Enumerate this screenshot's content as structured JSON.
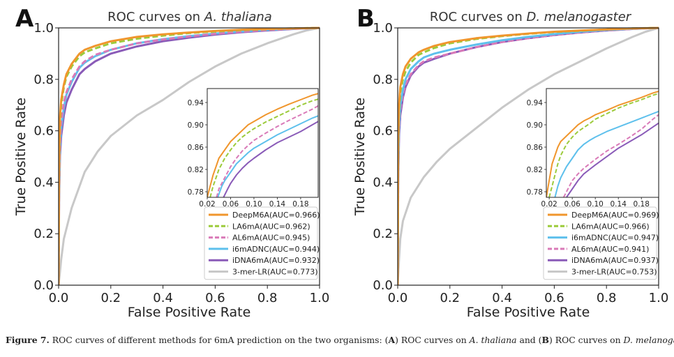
{
  "caption": {
    "figure_label": "Figure 7.",
    "text_1": " ROC curves of different methods for 6mA prediction on the two organisms: (",
    "label_a": "A",
    "text_2": ") ROC curves on ",
    "species_a": "A. thaliana",
    "text_3": " and (",
    "label_b": "B",
    "text_4": ") ROC curves on ",
    "species_b": "D. melanogaster",
    "text_5": "."
  },
  "chart_data": [
    {
      "type": "line",
      "panel_label": "A",
      "title_prefix": "ROC curves on ",
      "title_species": "A. thaliana",
      "xlabel": "False Positive Rate",
      "ylabel": "True Positive Rate",
      "xlim": [
        0,
        1
      ],
      "ylim": [
        0,
        1
      ],
      "xticks": [
        "0.0",
        "0.2",
        "0.4",
        "0.6",
        "0.8",
        "1.0"
      ],
      "yticks": [
        "0.0",
        "0.2",
        "0.4",
        "0.6",
        "0.8",
        "1.0"
      ],
      "legend_position": "bottom-right",
      "series": [
        {
          "name": "DeepM6A(AUC=0.966)",
          "color": "#f0962d",
          "dash": "solid",
          "x": [
            0,
            0.002,
            0.005,
            0.01,
            0.02,
            0.03,
            0.05,
            0.08,
            0.1,
            0.14,
            0.2,
            0.3,
            0.4,
            0.5,
            0.6,
            0.7,
            0.8,
            0.9,
            1.0
          ],
          "y": [
            0,
            0.45,
            0.65,
            0.72,
            0.78,
            0.82,
            0.86,
            0.9,
            0.915,
            0.93,
            0.948,
            0.965,
            0.975,
            0.982,
            0.988,
            0.993,
            0.996,
            0.998,
            1.0
          ]
        },
        {
          "name": "LA6mA(AUC=0.962)",
          "color": "#9ccb3b",
          "dash": "dashed",
          "x": [
            0,
            0.002,
            0.005,
            0.01,
            0.02,
            0.03,
            0.05,
            0.08,
            0.1,
            0.14,
            0.2,
            0.3,
            0.4,
            0.5,
            0.6,
            0.7,
            0.8,
            0.9,
            1.0
          ],
          "y": [
            0,
            0.43,
            0.63,
            0.7,
            0.77,
            0.81,
            0.85,
            0.89,
            0.905,
            0.92,
            0.94,
            0.958,
            0.97,
            0.98,
            0.986,
            0.991,
            0.995,
            0.998,
            1.0
          ]
        },
        {
          "name": "AL6mA(AUC=0.945)",
          "color": "#d97ab8",
          "dash": "dashed",
          "x": [
            0,
            0.002,
            0.005,
            0.01,
            0.02,
            0.03,
            0.05,
            0.08,
            0.1,
            0.14,
            0.2,
            0.3,
            0.4,
            0.5,
            0.6,
            0.7,
            0.8,
            0.9,
            1.0
          ],
          "y": [
            0,
            0.38,
            0.55,
            0.63,
            0.71,
            0.75,
            0.8,
            0.85,
            0.87,
            0.895,
            0.915,
            0.94,
            0.955,
            0.967,
            0.977,
            0.985,
            0.992,
            0.997,
            1.0
          ]
        },
        {
          "name": "i6mADNC(AUC=0.944)",
          "color": "#5ec0ec",
          "dash": "solid",
          "x": [
            0,
            0.002,
            0.005,
            0.01,
            0.02,
            0.03,
            0.05,
            0.08,
            0.1,
            0.14,
            0.2,
            0.3,
            0.4,
            0.5,
            0.6,
            0.7,
            0.8,
            0.9,
            1.0
          ],
          "y": [
            0,
            0.36,
            0.53,
            0.61,
            0.69,
            0.74,
            0.79,
            0.845,
            0.865,
            0.89,
            0.915,
            0.94,
            0.956,
            0.968,
            0.978,
            0.986,
            0.992,
            0.997,
            1.0
          ]
        },
        {
          "name": "iDNA6mA(AUC=0.932)",
          "color": "#8a5bb8",
          "dash": "solid",
          "x": [
            0,
            0.002,
            0.005,
            0.01,
            0.02,
            0.03,
            0.05,
            0.08,
            0.1,
            0.14,
            0.2,
            0.3,
            0.4,
            0.5,
            0.6,
            0.7,
            0.8,
            0.9,
            1.0
          ],
          "y": [
            0,
            0.33,
            0.5,
            0.58,
            0.66,
            0.71,
            0.76,
            0.82,
            0.84,
            0.87,
            0.9,
            0.928,
            0.948,
            0.962,
            0.974,
            0.983,
            0.99,
            0.996,
            1.0
          ]
        },
        {
          "name": "3-mer-LR(AUC=0.773)",
          "color": "#c8c8c8",
          "dash": "solid",
          "x": [
            0,
            0.005,
            0.01,
            0.02,
            0.05,
            0.1,
            0.15,
            0.2,
            0.3,
            0.4,
            0.5,
            0.6,
            0.7,
            0.8,
            0.9,
            0.95,
            1.0
          ],
          "y": [
            0,
            0.05,
            0.1,
            0.18,
            0.3,
            0.44,
            0.52,
            0.58,
            0.66,
            0.72,
            0.79,
            0.85,
            0.9,
            0.94,
            0.975,
            0.99,
            1.0
          ]
        }
      ],
      "inset": {
        "xlim": [
          0.02,
          0.21
        ],
        "ylim": [
          0.77,
          0.965
        ],
        "xticks": [
          "0.02",
          "0.06",
          "0.10",
          "0.14",
          "0.18"
        ],
        "yticks": [
          "0.78",
          "0.82",
          "0.86",
          "0.90",
          "0.94"
        ],
        "series": [
          {
            "name": "DeepM6A(AUC=0.966)",
            "x": [
              0.02,
              0.025,
              0.03,
              0.035,
              0.04,
              0.05,
              0.06,
              0.07,
              0.08,
              0.09,
              0.1,
              0.12,
              0.14,
              0.16,
              0.18,
              0.2,
              0.21
            ],
            "y": [
              0.77,
              0.79,
              0.81,
              0.825,
              0.84,
              0.855,
              0.87,
              0.88,
              0.89,
              0.9,
              0.906,
              0.918,
              0.928,
              0.937,
              0.945,
              0.953,
              0.956
            ]
          },
          {
            "name": "LA6mA(AUC=0.962)",
            "x": [
              0.025,
              0.03,
              0.035,
              0.04,
              0.05,
              0.06,
              0.07,
              0.08,
              0.09,
              0.1,
              0.12,
              0.14,
              0.16,
              0.18,
              0.2,
              0.21
            ],
            "y": [
              0.77,
              0.79,
              0.805,
              0.82,
              0.84,
              0.855,
              0.868,
              0.878,
              0.886,
              0.893,
              0.905,
              0.915,
              0.925,
              0.935,
              0.943,
              0.946
            ]
          },
          {
            "name": "AL6mA(AUC=0.945)",
            "x": [
              0.036,
              0.04,
              0.05,
              0.06,
              0.07,
              0.08,
              0.09,
              0.1,
              0.12,
              0.14,
              0.16,
              0.18,
              0.2,
              0.21
            ],
            "y": [
              0.77,
              0.785,
              0.805,
              0.825,
              0.84,
              0.853,
              0.863,
              0.872,
              0.885,
              0.897,
              0.908,
              0.918,
              0.928,
              0.934
            ]
          },
          {
            "name": "i6mADNC(AUC=0.944)",
            "x": [
              0.038,
              0.045,
              0.05,
              0.06,
              0.07,
              0.08,
              0.09,
              0.1,
              0.12,
              0.14,
              0.16,
              0.18,
              0.2,
              0.21
            ],
            "y": [
              0.77,
              0.79,
              0.8,
              0.815,
              0.83,
              0.84,
              0.85,
              0.858,
              0.87,
              0.882,
              0.892,
              0.902,
              0.912,
              0.916
            ]
          },
          {
            "name": "iDNA6mA(AUC=0.932)",
            "x": [
              0.048,
              0.055,
              0.06,
              0.07,
              0.08,
              0.09,
              0.1,
              0.12,
              0.14,
              0.16,
              0.18,
              0.2,
              0.21
            ],
            "y": [
              0.77,
              0.785,
              0.795,
              0.81,
              0.822,
              0.832,
              0.84,
              0.855,
              0.868,
              0.878,
              0.888,
              0.9,
              0.906
            ]
          }
        ]
      }
    },
    {
      "type": "line",
      "panel_label": "B",
      "title_prefix": "ROC curves on ",
      "title_species": "D. melanogaster",
      "xlabel": "False Positive Rate",
      "ylabel": "True Positive Rate",
      "xlim": [
        0,
        1
      ],
      "ylim": [
        0,
        1
      ],
      "xticks": [
        "0.0",
        "0.2",
        "0.4",
        "0.6",
        "0.8",
        "1.0"
      ],
      "yticks": [
        "0.0",
        "0.2",
        "0.4",
        "0.6",
        "0.8",
        "1.0"
      ],
      "legend_position": "bottom-right",
      "series": [
        {
          "name": "DeepM6A(AUC=0.969)",
          "color": "#f0962d",
          "dash": "solid",
          "x": [
            0,
            0.002,
            0.005,
            0.01,
            0.02,
            0.03,
            0.05,
            0.08,
            0.1,
            0.14,
            0.2,
            0.3,
            0.4,
            0.5,
            0.6,
            0.7,
            0.8,
            0.9,
            1.0
          ],
          "y": [
            0,
            0.55,
            0.7,
            0.77,
            0.82,
            0.85,
            0.88,
            0.905,
            0.915,
            0.93,
            0.945,
            0.96,
            0.97,
            0.978,
            0.985,
            0.99,
            0.994,
            0.998,
            1.0
          ]
        },
        {
          "name": "LA6mA(AUC=0.966)",
          "color": "#9ccb3b",
          "dash": "dashed",
          "x": [
            0,
            0.002,
            0.005,
            0.01,
            0.02,
            0.03,
            0.05,
            0.08,
            0.1,
            0.14,
            0.2,
            0.3,
            0.4,
            0.5,
            0.6,
            0.7,
            0.8,
            0.9,
            1.0
          ],
          "y": [
            0,
            0.52,
            0.68,
            0.75,
            0.8,
            0.83,
            0.865,
            0.895,
            0.905,
            0.922,
            0.94,
            0.957,
            0.968,
            0.977,
            0.984,
            0.989,
            0.994,
            0.998,
            1.0
          ]
        },
        {
          "name": "i6mADNC(AUC=0.947)",
          "color": "#5ec0ec",
          "dash": "solid",
          "x": [
            0,
            0.002,
            0.005,
            0.01,
            0.02,
            0.03,
            0.05,
            0.08,
            0.1,
            0.14,
            0.2,
            0.3,
            0.4,
            0.5,
            0.6,
            0.7,
            0.8,
            0.9,
            1.0
          ],
          "y": [
            0,
            0.45,
            0.62,
            0.7,
            0.76,
            0.8,
            0.84,
            0.87,
            0.885,
            0.9,
            0.915,
            0.935,
            0.952,
            0.965,
            0.976,
            0.985,
            0.992,
            0.997,
            1.0
          ]
        },
        {
          "name": "AL6mA(AUC=0.941)",
          "color": "#d97ab8",
          "dash": "dashed",
          "x": [
            0,
            0.002,
            0.005,
            0.01,
            0.02,
            0.03,
            0.05,
            0.08,
            0.1,
            0.14,
            0.2,
            0.3,
            0.4,
            0.5,
            0.6,
            0.7,
            0.8,
            0.9,
            1.0
          ],
          "y": [
            0,
            0.42,
            0.6,
            0.68,
            0.74,
            0.78,
            0.82,
            0.855,
            0.87,
            0.885,
            0.9,
            0.925,
            0.945,
            0.96,
            0.972,
            0.982,
            0.99,
            0.996,
            1.0
          ]
        },
        {
          "name": "iDNA6mA(AUC=0.937)",
          "color": "#8a5bb8",
          "dash": "solid",
          "x": [
            0,
            0.002,
            0.005,
            0.01,
            0.02,
            0.03,
            0.05,
            0.08,
            0.1,
            0.14,
            0.2,
            0.3,
            0.4,
            0.5,
            0.6,
            0.7,
            0.8,
            0.9,
            1.0
          ],
          "y": [
            0,
            0.4,
            0.58,
            0.66,
            0.73,
            0.77,
            0.815,
            0.85,
            0.865,
            0.88,
            0.9,
            0.925,
            0.945,
            0.96,
            0.972,
            0.982,
            0.99,
            0.996,
            1.0
          ]
        },
        {
          "name": "3-mer-LR(AUC=0.753)",
          "color": "#c8c8c8",
          "dash": "solid",
          "x": [
            0,
            0.005,
            0.01,
            0.02,
            0.05,
            0.1,
            0.15,
            0.2,
            0.3,
            0.4,
            0.5,
            0.6,
            0.7,
            0.8,
            0.9,
            0.95,
            1.0
          ],
          "y": [
            0,
            0.1,
            0.18,
            0.25,
            0.34,
            0.42,
            0.48,
            0.53,
            0.61,
            0.69,
            0.76,
            0.82,
            0.87,
            0.92,
            0.965,
            0.985,
            1.0
          ]
        }
      ],
      "inset": {
        "xlim": [
          0.015,
          0.21
        ],
        "ylim": [
          0.77,
          0.965
        ],
        "xticks": [
          "0.02",
          "0.06",
          "0.10",
          "0.14",
          "0.18"
        ],
        "yticks": [
          "0.78",
          "0.82",
          "0.86",
          "0.90",
          "0.94"
        ],
        "series": [
          {
            "name": "DeepM6A(AUC=0.969)",
            "x": [
              0.015,
              0.02,
              0.025,
              0.03,
              0.035,
              0.04,
              0.05,
              0.06,
              0.07,
              0.08,
              0.09,
              0.1,
              0.12,
              0.14,
              0.16,
              0.18,
              0.2,
              0.21
            ],
            "y": [
              0.77,
              0.8,
              0.83,
              0.845,
              0.86,
              0.87,
              0.88,
              0.89,
              0.9,
              0.907,
              0.912,
              0.918,
              0.926,
              0.935,
              0.942,
              0.949,
              0.957,
              0.96
            ]
          },
          {
            "name": "LA6mA(AUC=0.966)",
            "x": [
              0.02,
              0.025,
              0.03,
              0.035,
              0.04,
              0.05,
              0.06,
              0.07,
              0.08,
              0.09,
              0.1,
              0.12,
              0.14,
              0.16,
              0.18,
              0.2,
              0.21
            ],
            "y": [
              0.77,
              0.79,
              0.81,
              0.83,
              0.845,
              0.865,
              0.878,
              0.888,
              0.895,
              0.902,
              0.91,
              0.92,
              0.93,
              0.938,
              0.945,
              0.953,
              0.956
            ]
          },
          {
            "name": "i6mADNC(AUC=0.947)",
            "x": [
              0.03,
              0.035,
              0.04,
              0.05,
              0.06,
              0.07,
              0.08,
              0.09,
              0.1,
              0.12,
              0.14,
              0.16,
              0.18,
              0.2,
              0.21
            ],
            "y": [
              0.77,
              0.79,
              0.805,
              0.825,
              0.84,
              0.855,
              0.865,
              0.872,
              0.878,
              0.888,
              0.896,
              0.904,
              0.912,
              0.92,
              0.924
            ]
          },
          {
            "name": "AL6mA(AUC=0.941)",
            "x": [
              0.045,
              0.05,
              0.06,
              0.07,
              0.08,
              0.09,
              0.1,
              0.12,
              0.14,
              0.16,
              0.18,
              0.2,
              0.21
            ],
            "y": [
              0.77,
              0.78,
              0.8,
              0.812,
              0.822,
              0.83,
              0.838,
              0.853,
              0.865,
              0.878,
              0.892,
              0.91,
              0.918
            ]
          },
          {
            "name": "iDNA6mA(AUC=0.937)",
            "x": [
              0.05,
              0.06,
              0.07,
              0.08,
              0.09,
              0.1,
              0.12,
              0.14,
              0.16,
              0.18,
              0.2,
              0.21
            ],
            "y": [
              0.77,
              0.785,
              0.8,
              0.812,
              0.82,
              0.828,
              0.843,
              0.858,
              0.87,
              0.882,
              0.896,
              0.903
            ]
          }
        ]
      }
    }
  ]
}
